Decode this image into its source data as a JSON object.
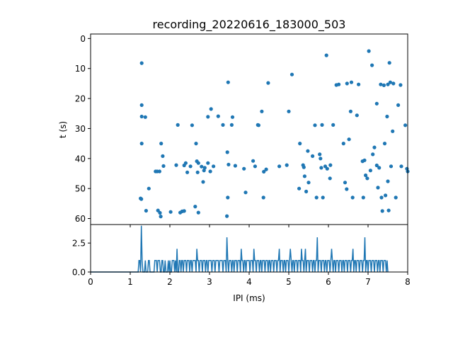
{
  "chart_data": [
    {
      "type": "scatter",
      "title": "recording_20220616_183000_503",
      "xlabel": "",
      "ylabel": "t (s)",
      "xlim": [
        0,
        8
      ],
      "ylim": [
        62,
        -1.5
      ],
      "y_inverted": true,
      "yticks": [
        0,
        10,
        20,
        30,
        40,
        50,
        60
      ],
      "x_ticklabels_shown": false,
      "grid": false,
      "color": "#1f77b4",
      "points": [
        [
          1.26,
          53.3
        ],
        [
          1.28,
          53.5
        ],
        [
          1.29,
          8.2
        ],
        [
          1.29,
          22.2
        ],
        [
          1.29,
          26.0
        ],
        [
          1.29,
          35.0
        ],
        [
          1.38,
          26.2
        ],
        [
          1.4,
          57.4
        ],
        [
          1.47,
          50.0
        ],
        [
          1.64,
          44.3
        ],
        [
          1.68,
          44.3
        ],
        [
          1.7,
          57.3
        ],
        [
          1.74,
          44.3
        ],
        [
          1.75,
          58.1
        ],
        [
          1.77,
          59.3
        ],
        [
          1.78,
          35.0
        ],
        [
          1.82,
          39.2
        ],
        [
          1.84,
          42.5
        ],
        [
          2.02,
          57.8
        ],
        [
          2.16,
          42.2
        ],
        [
          2.2,
          28.8
        ],
        [
          2.26,
          58.0
        ],
        [
          2.31,
          57.6
        ],
        [
          2.36,
          42.3
        ],
        [
          2.36,
          57.5
        ],
        [
          2.4,
          41.5
        ],
        [
          2.44,
          44.6
        ],
        [
          2.52,
          42.6
        ],
        [
          2.56,
          28.9
        ],
        [
          2.64,
          56.0
        ],
        [
          2.66,
          35.0
        ],
        [
          2.68,
          40.9
        ],
        [
          2.7,
          44.6
        ],
        [
          2.72,
          41.5
        ],
        [
          2.72,
          58.0
        ],
        [
          2.8,
          42.7
        ],
        [
          2.84,
          47.8
        ],
        [
          2.86,
          44.0
        ],
        [
          2.88,
          43.1
        ],
        [
          2.96,
          26.1
        ],
        [
          2.96,
          41.5
        ],
        [
          3.02,
          44.3
        ],
        [
          3.04,
          23.5
        ],
        [
          3.1,
          42.6
        ],
        [
          3.22,
          25.9
        ],
        [
          3.34,
          28.8
        ],
        [
          3.44,
          59.2
        ],
        [
          3.45,
          37.9
        ],
        [
          3.46,
          53.0
        ],
        [
          3.47,
          14.6
        ],
        [
          3.48,
          42.0
        ],
        [
          3.56,
          28.8
        ],
        [
          3.58,
          26.2
        ],
        [
          3.65,
          42.4
        ],
        [
          3.87,
          43.4
        ],
        [
          3.91,
          51.3
        ],
        [
          4.1,
          40.8
        ],
        [
          4.15,
          42.6
        ],
        [
          4.22,
          28.8
        ],
        [
          4.24,
          28.9
        ],
        [
          4.32,
          24.3
        ],
        [
          4.36,
          53.0
        ],
        [
          4.37,
          44.4
        ],
        [
          4.43,
          43.6
        ],
        [
          4.48,
          14.8
        ],
        [
          4.76,
          42.6
        ],
        [
          4.95,
          42.2
        ],
        [
          5.0,
          24.3
        ],
        [
          5.08,
          12.0
        ],
        [
          5.26,
          50.0
        ],
        [
          5.28,
          35.0
        ],
        [
          5.36,
          42.2
        ],
        [
          5.38,
          42.9
        ],
        [
          5.4,
          45.9
        ],
        [
          5.44,
          51.0
        ],
        [
          5.48,
          37.5
        ],
        [
          5.5,
          48.0
        ],
        [
          5.6,
          39.2
        ],
        [
          5.66,
          28.9
        ],
        [
          5.7,
          53.0
        ],
        [
          5.78,
          38.6
        ],
        [
          5.8,
          40.0
        ],
        [
          5.82,
          43.1
        ],
        [
          5.84,
          28.8
        ],
        [
          5.86,
          53.0
        ],
        [
          5.92,
          42.6
        ],
        [
          5.95,
          5.6
        ],
        [
          5.97,
          43.4
        ],
        [
          6.04,
          46.6
        ],
        [
          6.05,
          42.2
        ],
        [
          6.12,
          28.8
        ],
        [
          6.2,
          15.5
        ],
        [
          6.26,
          15.3
        ],
        [
          6.38,
          35.0
        ],
        [
          6.42,
          48.0
        ],
        [
          6.46,
          50.2
        ],
        [
          6.47,
          15.0
        ],
        [
          6.52,
          33.6
        ],
        [
          6.56,
          24.3
        ],
        [
          6.58,
          14.6
        ],
        [
          6.61,
          53.0
        ],
        [
          6.72,
          25.6
        ],
        [
          6.76,
          15.3
        ],
        [
          6.86,
          40.9
        ],
        [
          6.88,
          53.0
        ],
        [
          6.91,
          40.6
        ],
        [
          6.94,
          45.6
        ],
        [
          6.98,
          46.6
        ],
        [
          7.02,
          4.2
        ],
        [
          7.06,
          44.0
        ],
        [
          7.1,
          8.9
        ],
        [
          7.12,
          38.6
        ],
        [
          7.16,
          36.3
        ],
        [
          7.22,
          42.3
        ],
        [
          7.22,
          21.7
        ],
        [
          7.25,
          49.7
        ],
        [
          7.28,
          43.1
        ],
        [
          7.32,
          15.3
        ],
        [
          7.34,
          53.0
        ],
        [
          7.36,
          57.5
        ],
        [
          7.4,
          15.6
        ],
        [
          7.42,
          35.0
        ],
        [
          7.44,
          52.3
        ],
        [
          7.48,
          26.0
        ],
        [
          7.5,
          15.3
        ],
        [
          7.5,
          47.6
        ],
        [
          7.52,
          57.3
        ],
        [
          7.54,
          8.1
        ],
        [
          7.56,
          14.6
        ],
        [
          7.58,
          42.6
        ],
        [
          7.62,
          30.9
        ],
        [
          7.64,
          15.0
        ],
        [
          7.7,
          53.0
        ],
        [
          7.76,
          22.2
        ],
        [
          7.82,
          15.5
        ],
        [
          7.84,
          42.6
        ],
        [
          7.94,
          28.9
        ],
        [
          7.98,
          43.4
        ],
        [
          8.0,
          44.3
        ]
      ]
    },
    {
      "type": "line",
      "title": "",
      "xlabel": "IPI (ms)",
      "ylabel": "",
      "xlim": [
        0,
        8
      ],
      "ylim": [
        0,
        4.1
      ],
      "xticks": [
        0,
        1,
        2,
        3,
        4,
        5,
        6,
        7,
        8
      ],
      "yticks": [
        0.0,
        2.5
      ],
      "ytick_labels": [
        "0.0",
        "2.5"
      ],
      "grid": false,
      "color": "#1f77b4",
      "bin_width": 0.02,
      "x_start": 0,
      "values": [
        0,
        0,
        0,
        0,
        0,
        0,
        0,
        0,
        0,
        0,
        0,
        0,
        0,
        0,
        0,
        0,
        0,
        0,
        0,
        0,
        0,
        0,
        0,
        0,
        0,
        0,
        0,
        0,
        0,
        0,
        0,
        0,
        0,
        0,
        0,
        0,
        0,
        0,
        0,
        0,
        0,
        0,
        0,
        0,
        0,
        0,
        0,
        0,
        0,
        0,
        0,
        0,
        0,
        0,
        0,
        0,
        0,
        0,
        0,
        0,
        0,
        1,
        1,
        0,
        4,
        1,
        0,
        0,
        0,
        1,
        0,
        0,
        0,
        1,
        1,
        0,
        0,
        0,
        0,
        0,
        0,
        1,
        1,
        1,
        0,
        1,
        1,
        1,
        0,
        0,
        1,
        1,
        0,
        0,
        1,
        0,
        0,
        0,
        1,
        0,
        1,
        0,
        0,
        1,
        1,
        1,
        0,
        1,
        0,
        2,
        0,
        0,
        1,
        1,
        0,
        1,
        1,
        0,
        1,
        1,
        1,
        0,
        1,
        1,
        1,
        0,
        1,
        1,
        0,
        1,
        1,
        1,
        1,
        0,
        2,
        1,
        1,
        0,
        1,
        1,
        1,
        0,
        1,
        1,
        1,
        0,
        1,
        1,
        0,
        1,
        1,
        1,
        1,
        0,
        1,
        1,
        1,
        0,
        1,
        1,
        1,
        1,
        0,
        1,
        1,
        1,
        1,
        0,
        1,
        1,
        1,
        0,
        3,
        1,
        0,
        1,
        1,
        1,
        0,
        1,
        1,
        0,
        1,
        1,
        1,
        0,
        1,
        1,
        1,
        0,
        2,
        1,
        1,
        0,
        1,
        1,
        0,
        1,
        1,
        1,
        1,
        0,
        1,
        1,
        1,
        0,
        2,
        1,
        1,
        0,
        1,
        1,
        1,
        0,
        1,
        1,
        0,
        1,
        1,
        1,
        0,
        1,
        1,
        1,
        0,
        1,
        1,
        0,
        1,
        1,
        1,
        0,
        1,
        1,
        1,
        0,
        1,
        1,
        2,
        0,
        1,
        1,
        1,
        0,
        1,
        1,
        0,
        1,
        1,
        1,
        0,
        1,
        2,
        1,
        0,
        1,
        1,
        0,
        1,
        1,
        1,
        0,
        1,
        1,
        1,
        0,
        2,
        1,
        1,
        0,
        1,
        2,
        0,
        1,
        1,
        1,
        0,
        1,
        1,
        1,
        0,
        1,
        1,
        0,
        1,
        1,
        3,
        0,
        1,
        1,
        1,
        0,
        1,
        1,
        1,
        0,
        1,
        1,
        0,
        1,
        1,
        1,
        0,
        1,
        2,
        1,
        0,
        1,
        1,
        0,
        1,
        1,
        1,
        0,
        1,
        1,
        1,
        0,
        1,
        1,
        0,
        1,
        1,
        1,
        0,
        1,
        1,
        1,
        0,
        1,
        1,
        2,
        0,
        1,
        1,
        0,
        1,
        1,
        1,
        0,
        1,
        1,
        1,
        0,
        1,
        1,
        3,
        0,
        1,
        1,
        0,
        1,
        1,
        1,
        0,
        1,
        1,
        1,
        0,
        1,
        1,
        1,
        0,
        1,
        1,
        0,
        1,
        1,
        1,
        0,
        1,
        1,
        1,
        0,
        1,
        0
      ]
    }
  ]
}
